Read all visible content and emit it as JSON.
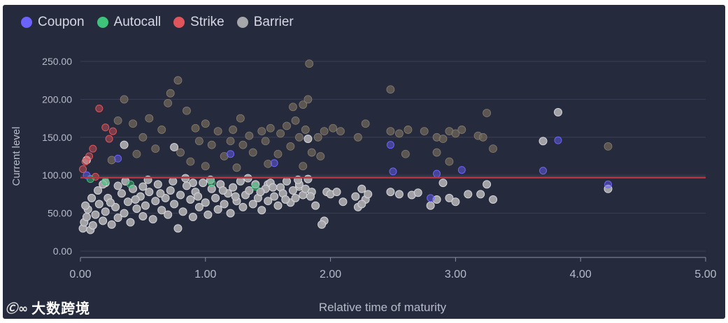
{
  "chart_data": {
    "type": "scatter",
    "title": "",
    "xlabel": "Relative time of maturity",
    "ylabel": "Current level",
    "xlim": [
      0,
      5
    ],
    "ylim": [
      0,
      250
    ],
    "x_ticks": [
      "0.00",
      "1.00",
      "2.00",
      "3.00",
      "4.00",
      "5.00"
    ],
    "y_ticks": [
      "0.00",
      "50.00",
      "100.00",
      "150.00",
      "200.00",
      "250.00"
    ],
    "grid": "horizontal",
    "legend_position": "top-left",
    "reference_line": {
      "name": "Strike",
      "y": 97,
      "color": "#c0323c"
    },
    "series": [
      {
        "name": "Coupon",
        "color": "#6c63ff",
        "points": [
          [
            2.48,
            140
          ],
          [
            3.05,
            107
          ],
          [
            3.7,
            106
          ],
          [
            3.82,
            146
          ],
          [
            2.5,
            105
          ],
          [
            2.85,
            102
          ],
          [
            0.3,
            122
          ],
          [
            1.2,
            128
          ],
          [
            1.55,
            116
          ],
          [
            0.05,
            100
          ],
          [
            4.22,
            88
          ],
          [
            2.8,
            70
          ]
        ]
      },
      {
        "name": "Autocall",
        "color": "#3ec47a",
        "points": [
          [
            0.08,
            95
          ],
          [
            0.2,
            92
          ],
          [
            0.4,
            88
          ],
          [
            1.05,
            90
          ],
          [
            1.4,
            85
          ]
        ]
      },
      {
        "name": "Strike",
        "color": "#e0545c",
        "points": [
          [
            0.02,
            108
          ],
          [
            0.07,
            125
          ],
          [
            0.12,
            98
          ],
          [
            0.2,
            163
          ],
          [
            0.23,
            148
          ],
          [
            0.15,
            188
          ],
          [
            0.1,
            135
          ],
          [
            0.26,
            158
          ],
          [
            0.04,
            118
          ]
        ]
      },
      {
        "name": "Barrier",
        "color": "#a6a7ab",
        "points": [
          [
            0.05,
            120
          ],
          [
            0.35,
            140
          ],
          [
            0.75,
            137
          ],
          [
            1.82,
            148
          ],
          [
            0.2,
            90
          ],
          [
            0.5,
            85
          ],
          [
            0.9,
            90
          ],
          [
            1.5,
            88
          ],
          [
            1.75,
            85
          ],
          [
            1.95,
            40
          ],
          [
            1.93,
            35
          ],
          [
            1.97,
            78
          ],
          [
            2.0,
            75
          ],
          [
            2.05,
            78
          ],
          [
            2.1,
            65
          ],
          [
            2.2,
            72
          ],
          [
            2.25,
            82
          ],
          [
            2.28,
            68
          ],
          [
            2.22,
            58
          ],
          [
            2.3,
            75
          ],
          [
            2.25,
            62
          ],
          [
            2.48,
            78
          ],
          [
            2.55,
            75
          ],
          [
            2.65,
            74
          ],
          [
            2.7,
            77
          ],
          [
            2.8,
            60
          ],
          [
            2.85,
            68
          ],
          [
            2.95,
            70
          ],
          [
            3.0,
            65
          ],
          [
            3.1,
            75
          ],
          [
            2.9,
            90
          ],
          [
            3.2,
            75
          ],
          [
            3.25,
            88
          ],
          [
            3.3,
            68
          ],
          [
            3.82,
            183
          ],
          [
            3.7,
            145
          ],
          [
            4.22,
            82
          ],
          [
            0.02,
            30
          ],
          [
            0.03,
            38
          ],
          [
            0.05,
            45
          ],
          [
            0.06,
            55
          ],
          [
            0.08,
            28
          ],
          [
            0.1,
            34
          ],
          [
            0.12,
            48
          ],
          [
            0.15,
            62
          ],
          [
            0.18,
            40
          ],
          [
            0.2,
            52
          ],
          [
            0.22,
            70
          ],
          [
            0.25,
            35
          ],
          [
            0.28,
            58
          ],
          [
            0.3,
            44
          ],
          [
            0.33,
            76
          ],
          [
            0.35,
            50
          ],
          [
            0.38,
            65
          ],
          [
            0.4,
            38
          ],
          [
            0.42,
            82
          ],
          [
            0.45,
            56
          ],
          [
            0.48,
            72
          ],
          [
            0.5,
            46
          ],
          [
            0.52,
            60
          ],
          [
            0.55,
            78
          ],
          [
            0.58,
            42
          ],
          [
            0.6,
            66
          ],
          [
            0.62,
            88
          ],
          [
            0.65,
            54
          ],
          [
            0.68,
            70
          ],
          [
            0.7,
            48
          ],
          [
            0.72,
            80
          ],
          [
            0.75,
            62
          ],
          [
            0.78,
            30
          ],
          [
            0.8,
            74
          ],
          [
            0.82,
            52
          ],
          [
            0.85,
            86
          ],
          [
            0.88,
            68
          ],
          [
            0.9,
            45
          ],
          [
            0.92,
            78
          ],
          [
            0.95,
            58
          ],
          [
            0.98,
            90
          ],
          [
            1.0,
            64
          ],
          [
            1.02,
            48
          ],
          [
            1.05,
            82
          ],
          [
            1.08,
            70
          ],
          [
            1.1,
            55
          ],
          [
            1.12,
            88
          ],
          [
            1.15,
            62
          ],
          [
            1.18,
            76
          ],
          [
            1.2,
            50
          ],
          [
            1.22,
            84
          ],
          [
            1.25,
            66
          ],
          [
            1.28,
            92
          ],
          [
            1.3,
            58
          ],
          [
            1.32,
            74
          ],
          [
            1.35,
            80
          ],
          [
            1.38,
            62
          ],
          [
            1.4,
            88
          ],
          [
            1.42,
            70
          ],
          [
            1.45,
            54
          ],
          [
            1.48,
            82
          ],
          [
            1.5,
            66
          ],
          [
            1.52,
            90
          ],
          [
            1.55,
            72
          ],
          [
            1.58,
            60
          ],
          [
            1.6,
            84
          ],
          [
            1.62,
            76
          ],
          [
            1.65,
            92
          ],
          [
            1.68,
            64
          ],
          [
            1.7,
            80
          ],
          [
            1.72,
            70
          ],
          [
            1.75,
            88
          ],
          [
            1.78,
            74
          ],
          [
            1.8,
            82
          ],
          [
            1.82,
            95
          ],
          [
            1.85,
            78
          ],
          [
            1.88,
            60
          ],
          [
            0.04,
            60
          ],
          [
            0.09,
            70
          ],
          [
            0.14,
            80
          ],
          [
            0.18,
            88
          ],
          [
            0.24,
            64
          ],
          [
            0.3,
            86
          ],
          [
            0.36,
            92
          ],
          [
            0.44,
            68
          ],
          [
            0.54,
            94
          ],
          [
            0.64,
            76
          ],
          [
            0.74,
            92
          ],
          [
            0.84,
            96
          ],
          [
            0.94,
            72
          ],
          [
            1.04,
            94
          ],
          [
            1.14,
            80
          ],
          [
            1.24,
            72
          ],
          [
            1.34,
            96
          ],
          [
            1.44,
            78
          ],
          [
            1.54,
            84
          ],
          [
            1.64,
            68
          ],
          [
            1.74,
            94
          ],
          [
            1.84,
            72
          ]
        ]
      }
    ],
    "faded_points": [
      [
        0.35,
        200
      ],
      [
        0.72,
        208
      ],
      [
        0.78,
        225
      ],
      [
        0.7,
        195
      ],
      [
        1.83,
        247
      ],
      [
        2.48,
        213
      ],
      [
        1.7,
        190
      ],
      [
        1.78,
        193
      ],
      [
        1.82,
        200
      ],
      [
        3.25,
        182
      ],
      [
        0.3,
        172
      ],
      [
        0.42,
        168
      ],
      [
        0.55,
        175
      ],
      [
        0.65,
        160
      ],
      [
        0.85,
        185
      ],
      [
        0.92,
        162
      ],
      [
        1.0,
        168
      ],
      [
        1.1,
        158
      ],
      [
        1.22,
        160
      ],
      [
        1.28,
        175
      ],
      [
        1.35,
        152
      ],
      [
        1.45,
        158
      ],
      [
        1.52,
        162
      ],
      [
        1.6,
        155
      ],
      [
        1.65,
        165
      ],
      [
        1.72,
        172
      ],
      [
        1.8,
        160
      ],
      [
        1.9,
        150
      ],
      [
        1.95,
        158
      ],
      [
        2.02,
        162
      ],
      [
        2.08,
        158
      ],
      [
        2.22,
        150
      ],
      [
        2.28,
        168
      ],
      [
        2.48,
        158
      ],
      [
        2.55,
        155
      ],
      [
        2.62,
        160
      ],
      [
        2.75,
        158
      ],
      [
        2.85,
        150
      ],
      [
        2.9,
        148
      ],
      [
        2.95,
        158
      ],
      [
        3.0,
        155
      ],
      [
        3.05,
        160
      ],
      [
        3.18,
        152
      ],
      [
        3.22,
        150
      ],
      [
        3.3,
        135
      ],
      [
        4.22,
        138
      ],
      [
        2.6,
        128
      ],
      [
        2.85,
        130
      ],
      [
        2.95,
        118
      ],
      [
        1.05,
        140
      ],
      [
        1.2,
        145
      ],
      [
        0.5,
        150
      ],
      [
        0.6,
        135
      ],
      [
        0.8,
        130
      ],
      [
        0.95,
        145
      ],
      [
        1.15,
        125
      ],
      [
        1.3,
        140
      ],
      [
        1.38,
        130
      ],
      [
        1.48,
        145
      ],
      [
        1.58,
        128
      ],
      [
        1.68,
        138
      ],
      [
        1.75,
        150
      ],
      [
        1.85,
        130
      ],
      [
        1.92,
        125
      ],
      [
        0.25,
        120
      ],
      [
        0.45,
        128
      ],
      [
        0.88,
        118
      ],
      [
        1.0,
        112
      ],
      [
        1.25,
        110
      ],
      [
        1.5,
        115
      ],
      [
        1.78,
        112
      ]
    ]
  },
  "watermark": {
    "logo": "Ⓒ∞",
    "text": "大数跨境"
  }
}
